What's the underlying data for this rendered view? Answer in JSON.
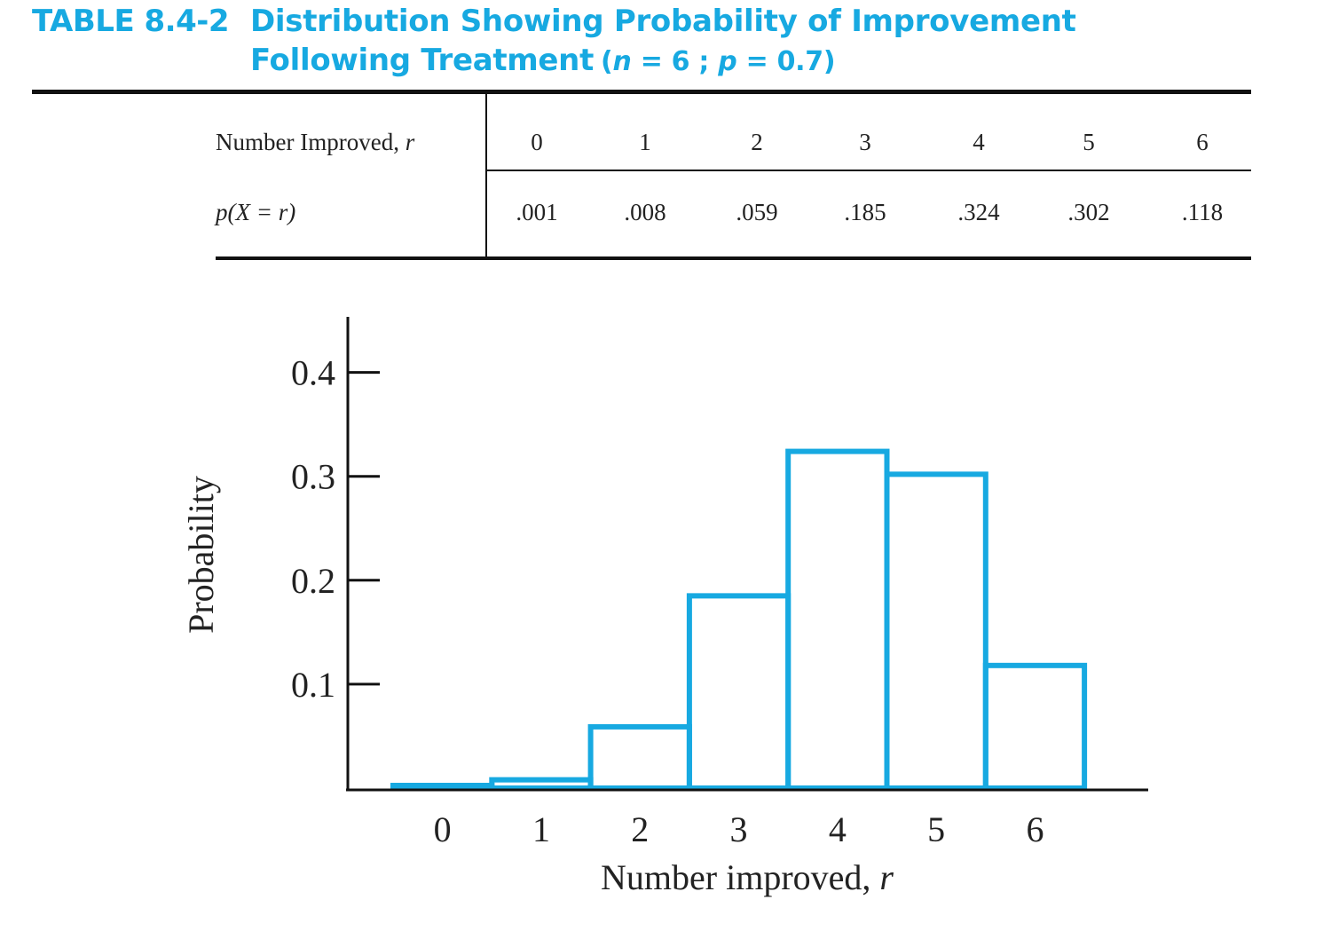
{
  "title": {
    "label": "TABLE 8.4-2",
    "line1": "Distribution Showing Probability of Improvement",
    "line2": "Following Treatment",
    "n_var": "n",
    "n_val": "= 6 ;",
    "p_var": "p",
    "p_val": "= 0.7)"
  },
  "table": {
    "row1_header": "Number Improved,",
    "row1_var": "r",
    "row2_header_a": "p(X = r)",
    "r_values": [
      "0",
      "1",
      "2",
      "3",
      "4",
      "5",
      "6"
    ],
    "p_values": [
      ".001",
      ".008",
      ".059",
      ".185",
      ".324",
      ".302",
      ".118"
    ]
  },
  "colors": {
    "title": "#17a9e1",
    "bars": "#17a9e1",
    "axis": "#111111"
  },
  "chart_data": {
    "type": "bar",
    "categories": [
      "0",
      "1",
      "2",
      "3",
      "4",
      "5",
      "6"
    ],
    "values": [
      0.001,
      0.008,
      0.059,
      0.185,
      0.324,
      0.302,
      0.118
    ],
    "xlabel": "Number improved, r",
    "ylabel": "Probability",
    "yticks": [
      "0.1",
      "0.2",
      "0.3",
      "0.4"
    ],
    "ylim": [
      0,
      0.45
    ],
    "grid": false,
    "bar_style": "outline"
  }
}
